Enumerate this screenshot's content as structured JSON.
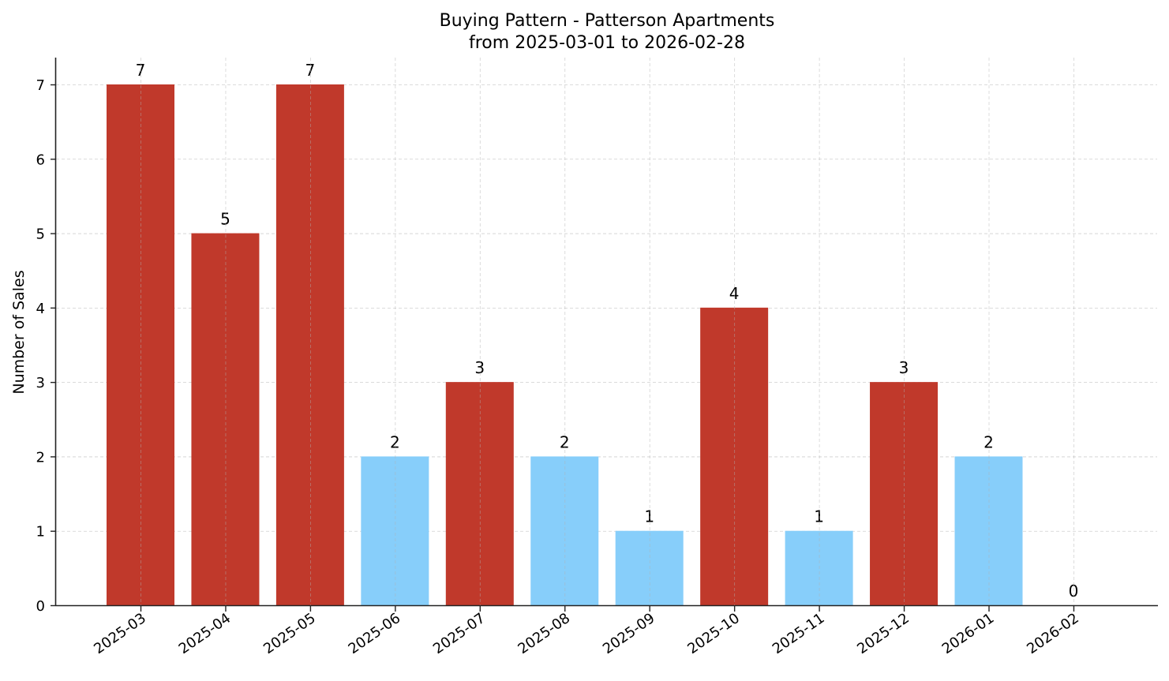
{
  "chart_data": {
    "type": "bar",
    "title": "Buying Pattern - Patterson Apartments",
    "subtitle": "from 2025-03-01 to 2026-02-28",
    "xlabel": "",
    "ylabel": "Number of Sales",
    "ylim": [
      0,
      7.35
    ],
    "yticks": [
      0,
      1,
      2,
      3,
      4,
      5,
      6,
      7
    ],
    "grid": true,
    "legend": null,
    "categories": [
      "2025-03",
      "2025-04",
      "2025-05",
      "2025-06",
      "2025-07",
      "2025-08",
      "2025-09",
      "2025-10",
      "2025-11",
      "2025-12",
      "2026-01",
      "2026-02"
    ],
    "values": [
      7,
      5,
      7,
      2,
      3,
      2,
      1,
      4,
      1,
      3,
      2,
      0
    ],
    "bar_colors": [
      "#c0392b",
      "#c0392b",
      "#c0392b",
      "#87cefa",
      "#c0392b",
      "#87cefa",
      "#87cefa",
      "#c0392b",
      "#87cefa",
      "#c0392b",
      "#87cefa",
      "#87cefa"
    ],
    "colors": {
      "high": "#c0392b",
      "low": "#87cefa"
    }
  }
}
